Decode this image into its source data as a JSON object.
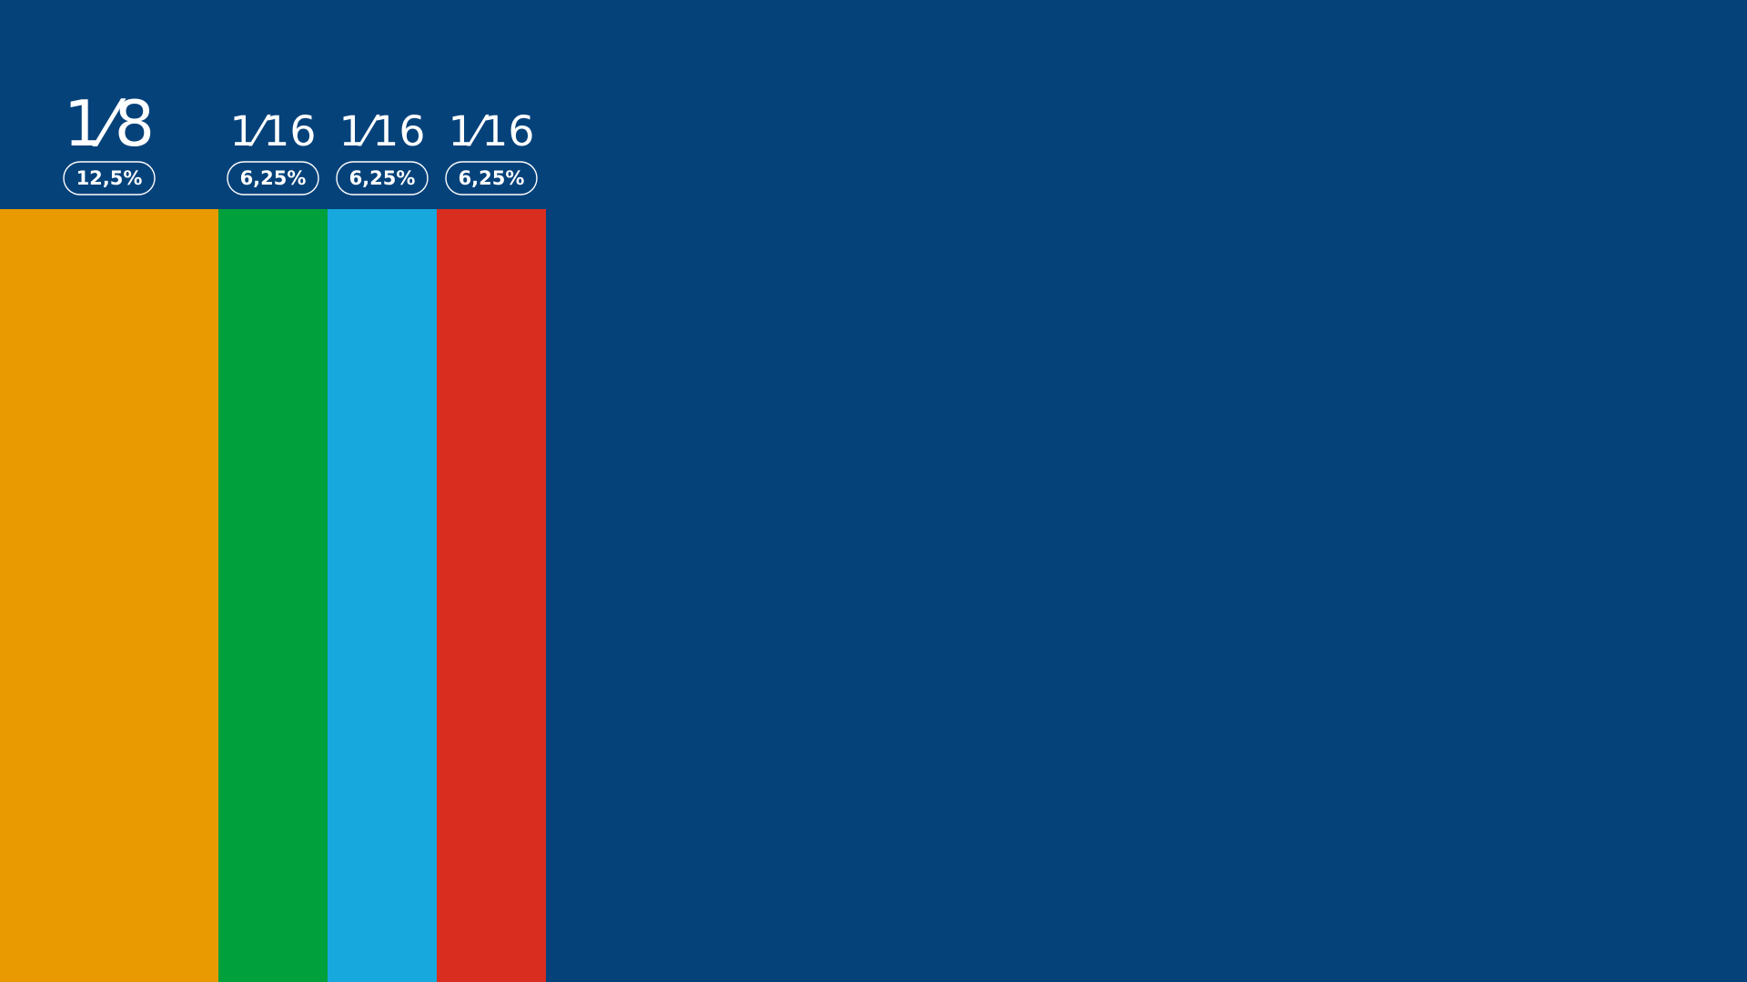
{
  "chart_data": {
    "type": "proportion-strip",
    "categories": [
      "1⁄8",
      "1⁄16",
      "1⁄16",
      "1⁄16"
    ],
    "values": [
      12.5,
      6.25,
      6.25,
      6.25
    ],
    "value_labels": [
      "12,5%",
      "6,25%",
      "6,25%",
      "6,25%"
    ],
    "colors": [
      "#e99a00",
      "#00a03c",
      "#17a9de",
      "#d92d20"
    ],
    "xlim": [
      0,
      100
    ]
  }
}
